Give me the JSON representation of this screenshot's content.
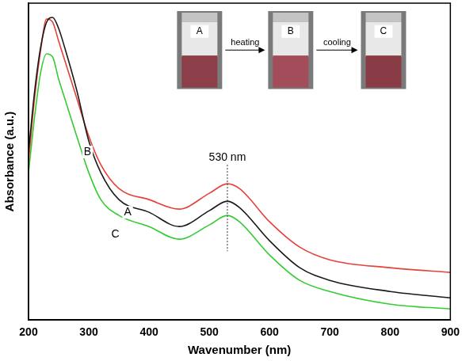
{
  "chart_data": {
    "type": "line",
    "x_label": "Wavenumber (nm)",
    "y_label": "Absorbance (a.u.)",
    "x": [
      200,
      210,
      220,
      230,
      240,
      250,
      260,
      280,
      300,
      320,
      350,
      400,
      450,
      500,
      530,
      550,
      600,
      650,
      700,
      800,
      900
    ],
    "series": [
      {
        "name": "A",
        "color": "#1a1a1a",
        "values": [
          0.53,
          0.72,
          0.86,
          0.94,
          0.955,
          0.92,
          0.86,
          0.725,
          0.565,
          0.465,
          0.38,
          0.34,
          0.295,
          0.345,
          0.375,
          0.355,
          0.25,
          0.165,
          0.125,
          0.09,
          0.07
        ]
      },
      {
        "name": "B",
        "color": "#e8403a",
        "values": [
          0.5,
          0.7,
          0.85,
          0.95,
          0.94,
          0.88,
          0.82,
          0.7,
          0.58,
          0.49,
          0.415,
          0.38,
          0.35,
          0.4,
          0.43,
          0.415,
          0.31,
          0.23,
          0.19,
          0.165,
          0.15
        ]
      },
      {
        "name": "C",
        "color": "#33cc33",
        "values": [
          0.465,
          0.64,
          0.78,
          0.84,
          0.83,
          0.76,
          0.7,
          0.58,
          0.465,
          0.38,
          0.33,
          0.295,
          0.255,
          0.3,
          0.33,
          0.31,
          0.205,
          0.125,
          0.09,
          0.05,
          0.035
        ]
      }
    ],
    "xlim": [
      200,
      900
    ],
    "xticks": [
      200,
      300,
      400,
      500,
      600,
      700,
      800,
      900
    ],
    "ylim": [
      0,
      1
    ],
    "grid": false,
    "tick_labels": "x",
    "annotations": [
      {
        "text": "530 nm",
        "x": 530
      }
    ],
    "inset": {
      "panels": [
        "A",
        "B",
        "C"
      ],
      "arrows": [
        "heating",
        "cooling"
      ]
    }
  }
}
